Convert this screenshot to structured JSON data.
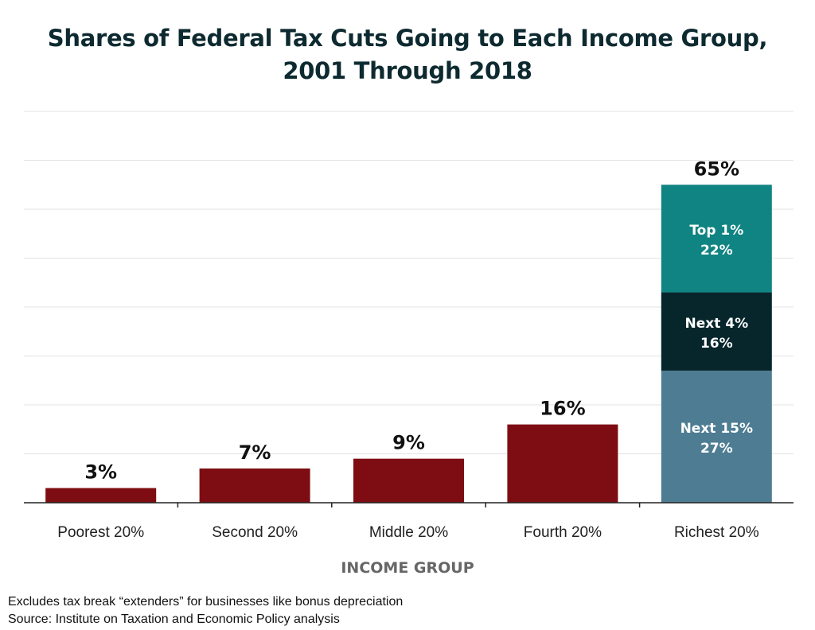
{
  "title_lines": [
    "Shares of Federal Tax Cuts Going to Each Income Group,",
    "2001 Through 2018"
  ],
  "footnote": {
    "note": "Excludes tax break “extenders” for businesses like bonus depreciation",
    "source": "Source: Institute on Taxation and Economic Policy analysis"
  },
  "colors": {
    "bar": "#7d0d12",
    "top1": "#108482",
    "next4": "#06262c",
    "next15": "#4e7d93",
    "grid": "#e3e3e3",
    "axis": "#222222",
    "xlabel": "#666666"
  },
  "chart_data": {
    "type": "bar",
    "title": "Shares of Federal Tax Cuts Going to Each Income Group, 2001 Through 2018",
    "xlabel": "INCOME GROUP",
    "ylabel": "",
    "unit": "%",
    "ylim": [
      0,
      80
    ],
    "grid": true,
    "grid_step": 10,
    "categories": [
      "Poorest 20%",
      "Second 20%",
      "Middle 20%",
      "Fourth 20%",
      "Richest 20%"
    ],
    "values": [
      3,
      7,
      9,
      16,
      65
    ],
    "value_labels": [
      "3%",
      "7%",
      "9%",
      "16%",
      "65%"
    ],
    "stacked_segments": {
      "category": "Richest 20%",
      "segments": [
        {
          "name": "Next 15%",
          "value": 27,
          "label": "27%",
          "color_key": "next15"
        },
        {
          "name": "Next 4%",
          "value": 16,
          "label": "16%",
          "color_key": "next4"
        },
        {
          "name": "Top 1%",
          "value": 22,
          "label": "22%",
          "color_key": "top1"
        }
      ]
    }
  }
}
